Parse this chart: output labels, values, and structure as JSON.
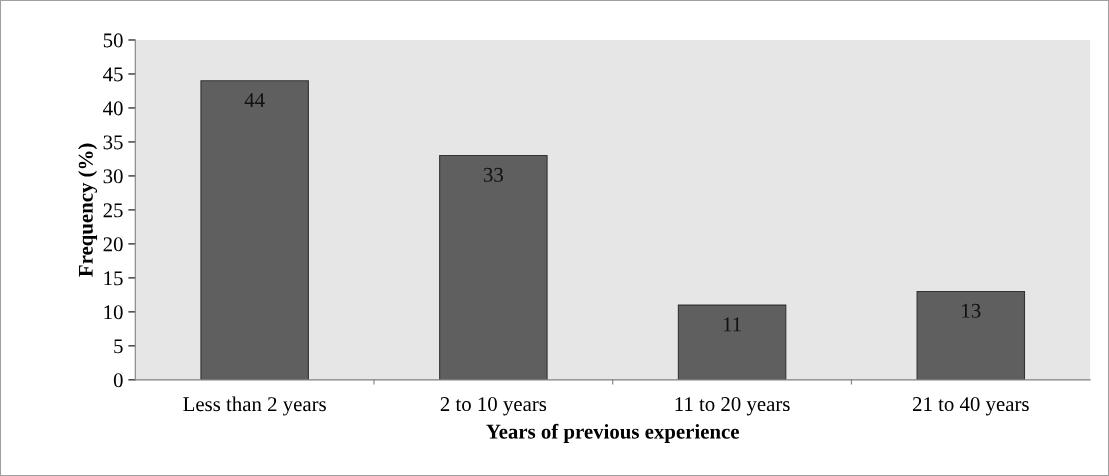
{
  "chart_data": {
    "type": "bar",
    "xlabel": "Years of previous experience",
    "ylabel": "Frequency (%)",
    "categories": [
      "Less than 2 years",
      "2 to 10 years",
      "11 to 20 years",
      "21 to 40 years"
    ],
    "values": [
      44,
      33,
      11,
      13
    ],
    "color": "#5f5f5f",
    "ylim": [
      0,
      50
    ],
    "yticks": [
      0,
      5,
      10,
      15,
      20,
      25,
      30,
      35,
      40,
      45,
      50
    ],
    "data_labels": true,
    "grid": false,
    "legend": false
  }
}
